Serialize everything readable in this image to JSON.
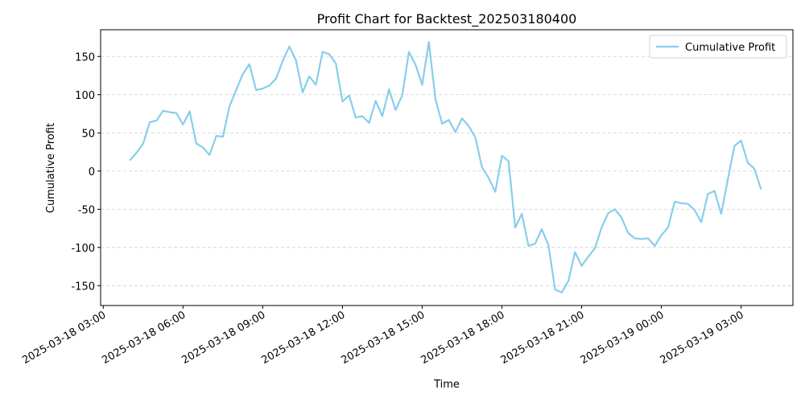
{
  "chart_data": {
    "type": "line",
    "title": "Profit Chart for Backtest_202503180400",
    "xlabel": "Time",
    "ylabel": "Cumulative Profit",
    "x": [
      "2025-03-18 04:00",
      "2025-03-18 04:15",
      "2025-03-18 04:30",
      "2025-03-18 04:45",
      "2025-03-18 05:00",
      "2025-03-18 05:15",
      "2025-03-18 05:30",
      "2025-03-18 05:45",
      "2025-03-18 06:00",
      "2025-03-18 06:15",
      "2025-03-18 06:30",
      "2025-03-18 06:45",
      "2025-03-18 07:00",
      "2025-03-18 07:15",
      "2025-03-18 07:30",
      "2025-03-18 07:45",
      "2025-03-18 08:00",
      "2025-03-18 08:15",
      "2025-03-18 08:30",
      "2025-03-18 08:45",
      "2025-03-18 09:00",
      "2025-03-18 09:15",
      "2025-03-18 09:30",
      "2025-03-18 09:45",
      "2025-03-18 10:00",
      "2025-03-18 10:15",
      "2025-03-18 10:30",
      "2025-03-18 10:45",
      "2025-03-18 11:00",
      "2025-03-18 11:15",
      "2025-03-18 11:30",
      "2025-03-18 11:45",
      "2025-03-18 12:00",
      "2025-03-18 12:15",
      "2025-03-18 12:30",
      "2025-03-18 12:45",
      "2025-03-18 13:00",
      "2025-03-18 13:15",
      "2025-03-18 13:30",
      "2025-03-18 13:45",
      "2025-03-18 14:00",
      "2025-03-18 14:15",
      "2025-03-18 14:30",
      "2025-03-18 14:45",
      "2025-03-18 15:00",
      "2025-03-18 15:15",
      "2025-03-18 15:30",
      "2025-03-18 15:45",
      "2025-03-18 16:00",
      "2025-03-18 16:15",
      "2025-03-18 16:30",
      "2025-03-18 16:45",
      "2025-03-18 17:00",
      "2025-03-18 17:15",
      "2025-03-18 17:30",
      "2025-03-18 17:45",
      "2025-03-18 18:00",
      "2025-03-18 18:15",
      "2025-03-18 18:30",
      "2025-03-18 18:45",
      "2025-03-18 19:00",
      "2025-03-18 19:15",
      "2025-03-18 19:30",
      "2025-03-18 19:45",
      "2025-03-18 20:00",
      "2025-03-18 20:15",
      "2025-03-18 20:30",
      "2025-03-18 20:45",
      "2025-03-18 21:00",
      "2025-03-18 21:15",
      "2025-03-18 21:30",
      "2025-03-18 21:45",
      "2025-03-18 22:00",
      "2025-03-18 22:15",
      "2025-03-18 22:30",
      "2025-03-18 22:45",
      "2025-03-18 23:00",
      "2025-03-18 23:15",
      "2025-03-18 23:30",
      "2025-03-18 23:45",
      "2025-03-19 00:00",
      "2025-03-19 00:15",
      "2025-03-19 00:30",
      "2025-03-19 00:45",
      "2025-03-19 01:00",
      "2025-03-19 01:15",
      "2025-03-19 01:30",
      "2025-03-19 01:45",
      "2025-03-19 02:00",
      "2025-03-19 02:15",
      "2025-03-19 02:30",
      "2025-03-19 02:45",
      "2025-03-19 03:00",
      "2025-03-19 03:15",
      "2025-03-19 03:30",
      "2025-03-19 03:45"
    ],
    "series": [
      {
        "name": "Cumulative Profit",
        "color": "#87ceeb",
        "values": [
          14,
          24,
          36,
          64,
          66,
          79,
          77,
          76,
          61,
          78,
          36,
          31,
          21,
          46,
          45,
          85,
          106,
          127,
          140,
          106,
          108,
          112,
          121,
          144,
          163,
          145,
          103,
          124,
          113,
          156,
          153,
          141,
          91,
          99,
          70,
          72,
          63,
          92,
          72,
          107,
          80,
          99,
          156,
          139,
          113,
          169,
          94,
          62,
          67,
          51,
          69,
          59,
          44,
          5,
          -9,
          -27,
          20,
          13,
          -74,
          -56,
          -98,
          -95,
          -76,
          -97,
          -155,
          -159,
          -144,
          -106,
          -124,
          -112,
          -101,
          -74,
          -55,
          -50,
          -61,
          -81,
          -88,
          -89,
          -88,
          -98,
          -84,
          -74,
          -40,
          -42,
          -43,
          -51,
          -67,
          -30,
          -26,
          -56,
          -11,
          33,
          40,
          11,
          3,
          -24
        ]
      }
    ],
    "xlim": [
      "2025-03-18 02:54",
      "2025-03-19 04:57"
    ],
    "xticks": [
      "2025-03-18 03:00",
      "2025-03-18 06:00",
      "2025-03-18 09:00",
      "2025-03-18 12:00",
      "2025-03-18 15:00",
      "2025-03-18 18:00",
      "2025-03-18 21:00",
      "2025-03-19 00:00",
      "2025-03-19 03:00"
    ],
    "ylim": [
      -176,
      185
    ],
    "yticks": [
      -150,
      -100,
      -50,
      0,
      50,
      100,
      150
    ],
    "grid": true,
    "legend": "upper right"
  }
}
